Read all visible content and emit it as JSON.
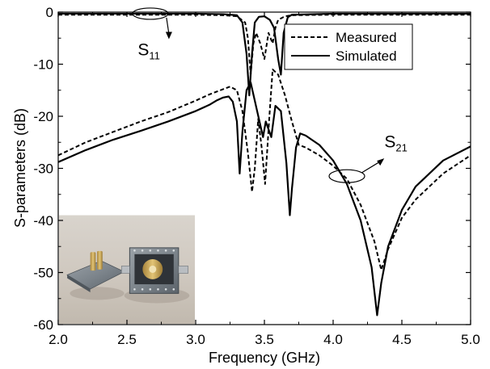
{
  "chart_data": {
    "type": "line",
    "title": "",
    "xlabel": "Frequency (GHz)",
    "ylabel": "S-parameters (dB)",
    "xlim": [
      2.0,
      5.0
    ],
    "ylim": [
      -60,
      0
    ],
    "xticks": [
      "2.0",
      "2.5",
      "3.0",
      "3.5",
      "4.0",
      "4.5",
      "5.0"
    ],
    "yticks": [
      "0",
      "-10",
      "-20",
      "-30",
      "-40",
      "-50",
      "-60"
    ],
    "grid": false,
    "legend": {
      "position": "top-right",
      "entries": [
        "Measured",
        "Simulated"
      ]
    },
    "annotations": [
      {
        "text": "S",
        "subscript": "11",
        "x": 2.72,
        "y": -5.5
      },
      {
        "text": "S",
        "subscript": "21",
        "x": 4.42,
        "y": -27.2
      }
    ],
    "inset_photo": {
      "description": "photograph of fabricated filter",
      "x_range": [
        2.0,
        3.0
      ],
      "y_range": [
        -60,
        -39
      ]
    },
    "series": [
      {
        "name": "Measured",
        "style": "dashed",
        "color": "#000000",
        "parts": [
          {
            "name": "S11",
            "points": [
              [
                2.0,
                -0.5
              ],
              [
                2.5,
                -0.5
              ],
              [
                3.0,
                -0.5
              ],
              [
                3.2,
                -0.6
              ],
              [
                3.3,
                -0.8
              ],
              [
                3.36,
                -2
              ],
              [
                3.38,
                -5
              ],
              [
                3.4,
                -12
              ],
              [
                3.42,
                -6
              ],
              [
                3.44,
                -4
              ],
              [
                3.47,
                -6
              ],
              [
                3.5,
                -9
              ],
              [
                3.53,
                -4
              ],
              [
                3.56,
                -6
              ],
              [
                3.58,
                -3
              ],
              [
                3.6,
                -1.5
              ],
              [
                3.65,
                -0.8
              ],
              [
                3.7,
                -0.6
              ],
              [
                4.0,
                -0.5
              ],
              [
                4.5,
                -0.5
              ],
              [
                5.0,
                -0.5
              ]
            ]
          },
          {
            "name": "S21",
            "points": [
              [
                2.0,
                -27.5
              ],
              [
                2.2,
                -25
              ],
              [
                2.4,
                -23
              ],
              [
                2.6,
                -21
              ],
              [
                2.8,
                -19.2
              ],
              [
                3.0,
                -17
              ],
              [
                3.1,
                -15.8
              ],
              [
                3.2,
                -14.8
              ],
              [
                3.25,
                -14.3
              ],
              [
                3.3,
                -15
              ],
              [
                3.34,
                -19
              ],
              [
                3.38,
                -27
              ],
              [
                3.41,
                -34.5
              ],
              [
                3.43,
                -30
              ],
              [
                3.455,
                -20.5
              ],
              [
                3.48,
                -26
              ],
              [
                3.505,
                -33
              ],
              [
                3.535,
                -20.5
              ],
              [
                3.56,
                -11
              ],
              [
                3.6,
                -12
              ],
              [
                3.65,
                -16
              ],
              [
                3.7,
                -21
              ],
              [
                3.75,
                -25.5
              ],
              [
                3.8,
                -26
              ],
              [
                3.9,
                -27.5
              ],
              [
                4.0,
                -29.5
              ],
              [
                4.1,
                -32
              ],
              [
                4.2,
                -37
              ],
              [
                4.3,
                -44
              ],
              [
                4.35,
                -49.5
              ],
              [
                4.4,
                -45.5
              ],
              [
                4.5,
                -39.5
              ],
              [
                4.6,
                -36
              ],
              [
                4.8,
                -31
              ],
              [
                5.0,
                -27.5
              ]
            ]
          }
        ]
      },
      {
        "name": "Simulated",
        "style": "solid",
        "color": "#000000",
        "parts": [
          {
            "name": "S11",
            "points": [
              [
                2.0,
                -0.3
              ],
              [
                2.5,
                -0.3
              ],
              [
                3.0,
                -0.3
              ],
              [
                3.2,
                -0.4
              ],
              [
                3.3,
                -0.6
              ],
              [
                3.34,
                -2
              ],
              [
                3.37,
                -8
              ],
              [
                3.39,
                -16
              ],
              [
                3.41,
                -8
              ],
              [
                3.43,
                -2
              ],
              [
                3.46,
                -0.9
              ],
              [
                3.5,
                -0.8
              ],
              [
                3.54,
                -1.5
              ],
              [
                3.57,
                -3
              ],
              [
                3.6,
                -9
              ],
              [
                3.62,
                -12
              ],
              [
                3.64,
                -4
              ],
              [
                3.67,
                -1
              ],
              [
                3.7,
                -0.5
              ],
              [
                4.0,
                -0.3
              ],
              [
                4.5,
                -0.3
              ],
              [
                5.0,
                -0.3
              ]
            ]
          },
          {
            "name": "S21",
            "points": [
              [
                2.0,
                -28.8
              ],
              [
                2.2,
                -26.5
              ],
              [
                2.4,
                -24.5
              ],
              [
                2.6,
                -22.8
              ],
              [
                2.8,
                -21
              ],
              [
                3.0,
                -19
              ],
              [
                3.1,
                -17.8
              ],
              [
                3.15,
                -17
              ],
              [
                3.2,
                -16.4
              ],
              [
                3.24,
                -16.2
              ],
              [
                3.27,
                -17.2
              ],
              [
                3.3,
                -21
              ],
              [
                3.32,
                -31
              ],
              [
                3.34,
                -23
              ],
              [
                3.37,
                -15
              ],
              [
                3.4,
                -13.5
              ],
              [
                3.43,
                -17
              ],
              [
                3.46,
                -20.5
              ],
              [
                3.49,
                -24
              ],
              [
                3.51,
                -21
              ],
              [
                3.55,
                -24
              ],
              [
                3.58,
                -18
              ],
              [
                3.62,
                -19
              ],
              [
                3.66,
                -29
              ],
              [
                3.685,
                -39
              ],
              [
                3.7,
                -34
              ],
              [
                3.73,
                -26
              ],
              [
                3.76,
                -23.3
              ],
              [
                3.8,
                -23.7
              ],
              [
                3.9,
                -25.5
              ],
              [
                4.0,
                -28.5
              ],
              [
                4.1,
                -33
              ],
              [
                4.2,
                -40
              ],
              [
                4.28,
                -49
              ],
              [
                4.32,
                -58.2
              ],
              [
                4.35,
                -52
              ],
              [
                4.4,
                -45
              ],
              [
                4.5,
                -38
              ],
              [
                4.6,
                -33.5
              ],
              [
                4.8,
                -28.5
              ],
              [
                5.0,
                -25.8
              ]
            ]
          }
        ]
      }
    ]
  }
}
